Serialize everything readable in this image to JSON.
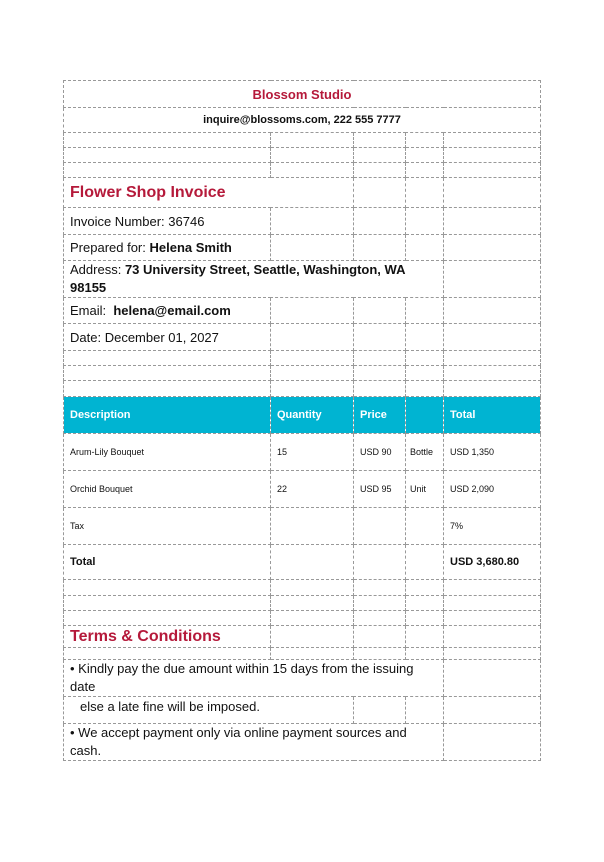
{
  "header": {
    "brand": "Blossom Studio",
    "contact": "inquire@blossoms.com, 222 555 7777"
  },
  "invoice": {
    "title": "Flower Shop Invoice",
    "number_label": "Invoice Number:",
    "number": "36746",
    "prepared_label": "Prepared for:",
    "prepared": "Helena Smith",
    "address_label": "Address:",
    "address": "73 University Street, Seattle, Washington, WA 98155",
    "email_label": "Email:",
    "email": "helena@email.com",
    "date_label": "Date:",
    "date": "December 01, 2027"
  },
  "table": {
    "columns": [
      "Description",
      "Quantity",
      "Price",
      "",
      "Total"
    ],
    "rows": [
      {
        "description": "Arum-Lily Bouquet",
        "quantity": "15",
        "price": "USD 90",
        "unit": "Bottle",
        "total": "USD 1,350"
      },
      {
        "description": "Orchid Bouquet",
        "quantity": "22",
        "price": "USD 95",
        "unit": "Unit",
        "total": "USD 2,090"
      }
    ],
    "tax_label": "Tax",
    "tax": "7%",
    "total_label": "Total",
    "total": "USD 3,680.80"
  },
  "terms": {
    "title": "Terms & Conditions",
    "line1": "• Kindly pay the due amount within 15 days from the issuing date",
    "line1b": "else a late fine will be imposed.",
    "line2": "• We accept payment only via online payment sources and cash."
  },
  "colors": {
    "accent": "#b5193a",
    "header_bg": "#00b4d2"
  }
}
